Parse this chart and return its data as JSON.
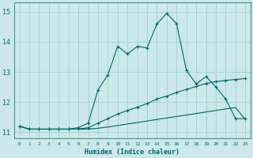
{
  "xlabel": "Humidex (Indice chaleur)",
  "background_color": "#cce8e8",
  "grid_color": "#99cccc",
  "line_color": "#006666",
  "xlim": [
    -0.5,
    23.5
  ],
  "ylim": [
    10.8,
    15.3
  ],
  "xticks": [
    0,
    1,
    2,
    3,
    4,
    5,
    6,
    7,
    8,
    9,
    10,
    11,
    12,
    13,
    14,
    15,
    16,
    17,
    18,
    19,
    20,
    21,
    22,
    23
  ],
  "yticks": [
    11,
    12,
    13,
    14,
    15
  ],
  "s1_x": [
    0,
    1,
    2,
    3,
    4,
    5,
    6,
    7,
    8,
    9,
    10,
    11,
    12,
    13,
    14,
    15,
    16,
    17,
    18,
    19,
    20,
    21,
    22,
    23
  ],
  "s1_y": [
    11.2,
    11.1,
    11.1,
    11.1,
    11.1,
    11.1,
    11.15,
    11.3,
    12.4,
    12.9,
    13.85,
    13.6,
    13.85,
    13.8,
    14.6,
    14.95,
    14.6,
    13.05,
    12.6,
    12.85,
    12.5,
    12.1,
    11.45,
    11.45
  ],
  "s2_x": [
    0,
    1,
    2,
    3,
    4,
    5,
    6,
    7,
    8,
    9,
    10,
    11,
    12,
    13,
    14,
    15,
    16,
    17,
    18,
    19,
    20,
    21,
    22,
    23
  ],
  "s2_y": [
    11.2,
    11.1,
    11.1,
    11.1,
    11.1,
    11.1,
    11.1,
    11.15,
    11.3,
    11.45,
    11.6,
    11.72,
    11.83,
    11.95,
    12.1,
    12.2,
    12.32,
    12.42,
    12.52,
    12.62,
    12.68,
    12.72,
    12.75,
    12.78
  ],
  "s3_x": [
    0,
    1,
    2,
    3,
    4,
    5,
    6,
    7,
    8,
    9,
    10,
    11,
    12,
    13,
    14,
    15,
    16,
    17,
    18,
    19,
    20,
    21,
    22,
    23
  ],
  "s3_y": [
    11.2,
    11.1,
    11.1,
    11.1,
    11.1,
    11.1,
    11.1,
    11.1,
    11.13,
    11.17,
    11.22,
    11.27,
    11.32,
    11.37,
    11.42,
    11.47,
    11.52,
    11.57,
    11.62,
    11.67,
    11.72,
    11.77,
    11.82,
    11.42
  ]
}
